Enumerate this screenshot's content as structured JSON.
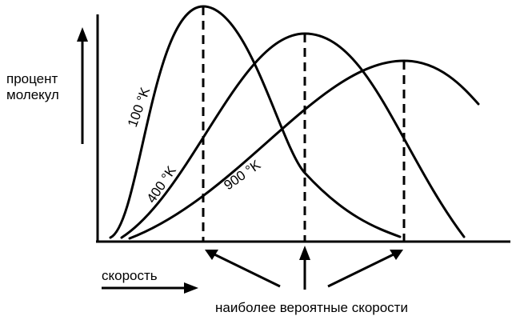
{
  "chart_data": {
    "type": "line",
    "ylabel_lines": [
      "процент",
      "молекул"
    ],
    "xlabel": "скорость",
    "annotation": "наиболее вероятные скорости",
    "x_scale": "relative (unlabeled)",
    "y_scale": "relative (unlabeled)",
    "grid": false,
    "series": [
      {
        "name": "100 °K",
        "peak_x": 0.25,
        "peak_y": 1.0
      },
      {
        "name": "400 °K",
        "peak_x": 0.5,
        "peak_y": 0.88
      },
      {
        "name": "900 °K",
        "peak_x": 0.75,
        "peak_y": 0.76
      }
    ]
  }
}
